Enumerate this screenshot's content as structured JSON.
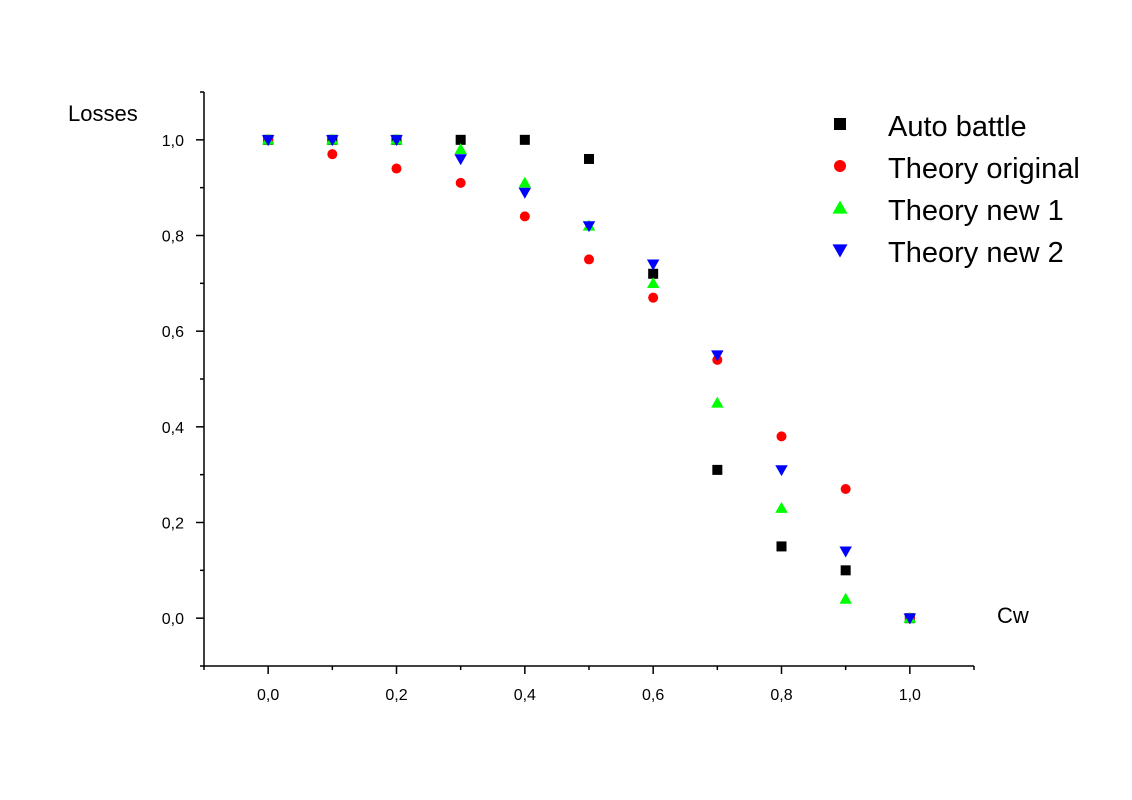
{
  "chart_data": {
    "type": "scatter",
    "title": "",
    "xlabel": "Cw",
    "ylabel": "Losses",
    "xlim": [
      -0.1,
      1.1
    ],
    "ylim": [
      -0.1,
      1.1
    ],
    "xticks": [
      0.0,
      0.2,
      0.4,
      0.6,
      0.8,
      1.0
    ],
    "xtick_labels": [
      "0,0",
      "0,2",
      "0,4",
      "0,6",
      "0,8",
      "1,0"
    ],
    "yticks": [
      0.0,
      0.2,
      0.4,
      0.6,
      0.8,
      1.0
    ],
    "ytick_labels": [
      "0,0",
      "0,2",
      "0,4",
      "0,6",
      "0,8",
      "1,0"
    ],
    "grid": false,
    "legend_position": "top-right",
    "x": [
      0.0,
      0.1,
      0.2,
      0.3,
      0.4,
      0.5,
      0.6,
      0.7,
      0.8,
      0.9,
      1.0
    ],
    "series": [
      {
        "name": "Auto battle",
        "marker": "square",
        "color": "#000000",
        "values": [
          1.0,
          1.0,
          1.0,
          1.0,
          1.0,
          0.96,
          0.72,
          0.31,
          0.15,
          0.1,
          0.0
        ]
      },
      {
        "name": "Theory original",
        "marker": "circle",
        "color": "#ff0000",
        "values": [
          1.0,
          0.97,
          0.94,
          0.91,
          0.84,
          0.75,
          0.67,
          0.54,
          0.38,
          0.27,
          0.0
        ]
      },
      {
        "name": "Theory new 1",
        "marker": "triangle-up",
        "color": "#00ff00",
        "values": [
          1.0,
          1.0,
          1.0,
          0.98,
          0.91,
          0.82,
          0.7,
          0.45,
          0.23,
          0.04,
          0.0
        ]
      },
      {
        "name": "Theory new 2",
        "marker": "triangle-down",
        "color": "#0000ff",
        "values": [
          1.0,
          1.0,
          1.0,
          0.96,
          0.89,
          0.82,
          0.74,
          0.55,
          0.31,
          0.14,
          0.0
        ]
      }
    ]
  }
}
